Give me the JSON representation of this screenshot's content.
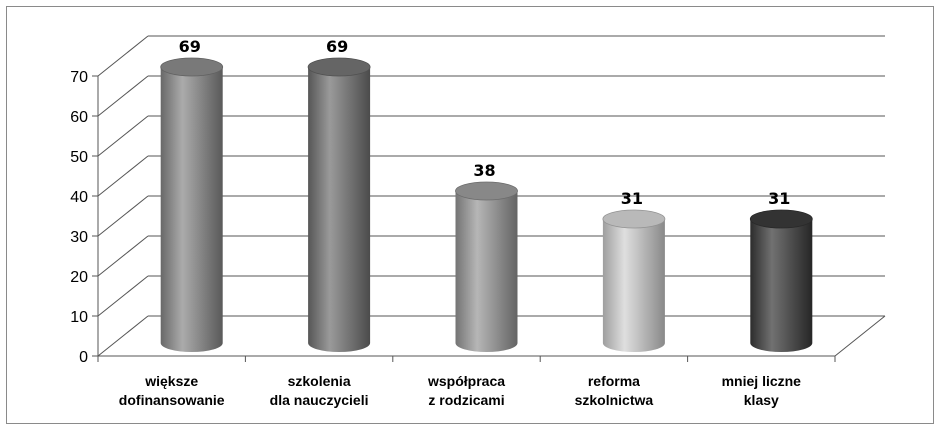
{
  "chart_data": {
    "type": "bar",
    "style": "3d-cylinder",
    "title": "",
    "xlabel": "",
    "ylabel": "",
    "ylim": [
      0,
      70
    ],
    "yticks": [
      "0",
      "10",
      "20",
      "30",
      "40",
      "50",
      "60",
      "70"
    ],
    "grid": true,
    "legend": "none",
    "categories": [
      [
        "większe",
        "dofinansowanie"
      ],
      [
        "szkolenia",
        "dla nauczycieli"
      ],
      [
        "współpraca",
        "z rodzicami"
      ],
      [
        "reforma",
        "szkolnictwa"
      ],
      [
        "mniej liczne",
        "klasy"
      ]
    ],
    "values": [
      69,
      69,
      38,
      31,
      31
    ],
    "data_labels": [
      "69",
      "69",
      "38",
      "31",
      "31"
    ],
    "colors": [
      "#8a8a8a",
      "#737373",
      "#9a9a9a",
      "#d2d2d2",
      "#3a3a3a"
    ]
  }
}
